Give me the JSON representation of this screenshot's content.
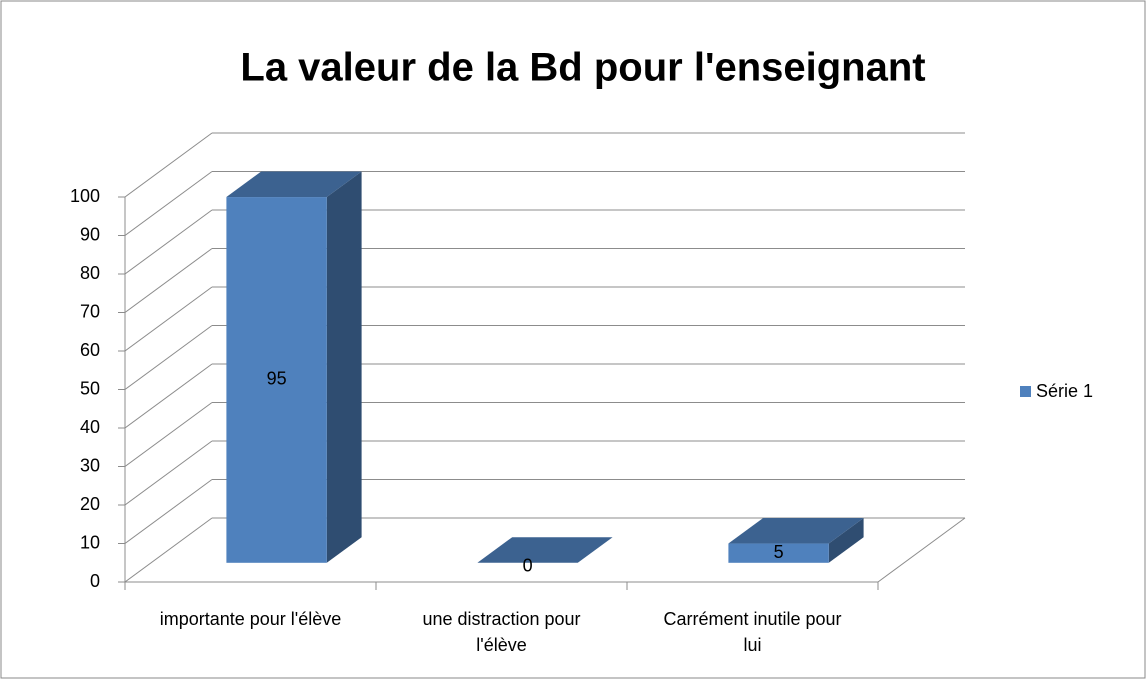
{
  "chart_data": {
    "type": "bar3d",
    "title": "La valeur  de la Bd pour l'enseignant",
    "categories": [
      "importante pour l'élève",
      "une distraction pour l'élève",
      "Carrément inutile pour lui"
    ],
    "series": [
      {
        "name": "Série 1",
        "color": "#4f81bd",
        "values": [
          95,
          0,
          5
        ]
      }
    ],
    "ylim": [
      0,
      100
    ],
    "yticks": [
      0,
      10,
      20,
      30,
      40,
      50,
      60,
      70,
      80,
      90,
      100
    ],
    "grid": true,
    "legend": "right"
  }
}
